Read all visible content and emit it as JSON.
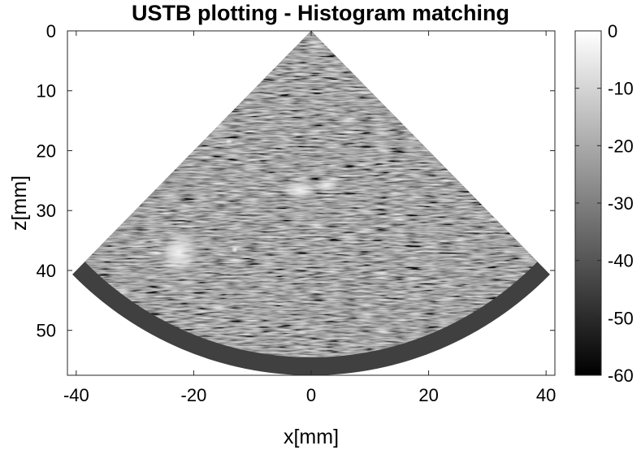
{
  "chart_data": {
    "type": "heatmap",
    "title": "USTB plotting - Histogram matching",
    "xlabel": "x[mm]",
    "ylabel": "z[mm]",
    "xlim": [
      -41.5,
      41.5
    ],
    "ylim": [
      0,
      57.5
    ],
    "x_ticks": [
      "-40",
      "-20",
      "0",
      "20",
      "40"
    ],
    "x_tick_values": [
      -40,
      -20,
      0,
      20,
      40
    ],
    "y_ticks": [
      "0",
      "10",
      "20",
      "30",
      "40",
      "50"
    ],
    "y_tick_values": [
      0,
      10,
      20,
      30,
      40,
      50
    ],
    "y_direction": "reversed",
    "colormap": "gray",
    "colorbar": {
      "ticks": [
        "0",
        "-10",
        "-20",
        "-30",
        "-40",
        "-50",
        "-60"
      ],
      "tick_values": [
        0,
        -10,
        -20,
        -30,
        -40,
        -50,
        -60
      ],
      "range_db": [
        -60,
        0
      ]
    },
    "image": {
      "geometry": "sector",
      "apex_x_mm": 0,
      "apex_z_mm": 0,
      "half_angle_deg": 45,
      "max_depth_mm": 57.5,
      "band_depth_start_mm": 54.5,
      "speckle_level_db": -35,
      "band_level_db": -45,
      "bright_regions": [
        {
          "x_mm": -22.5,
          "z_mm": 37,
          "rx_mm": 3.5,
          "rz_mm": 4,
          "level_db": -12
        },
        {
          "x_mm": -2,
          "z_mm": 26.5,
          "rx_mm": 3.5,
          "rz_mm": 1.5,
          "level_db": -15
        },
        {
          "x_mm": 2.5,
          "z_mm": 25.8,
          "rx_mm": 2.5,
          "rz_mm": 1.0,
          "level_db": -15
        },
        {
          "x_mm": -13,
          "z_mm": 36.5,
          "rx_mm": 0.6,
          "rz_mm": 0.6,
          "level_db": -10
        },
        {
          "x_mm": -14,
          "z_mm": 18.5,
          "rx_mm": 0.8,
          "rz_mm": 0.5,
          "level_db": -20
        }
      ]
    },
    "grid": false
  }
}
